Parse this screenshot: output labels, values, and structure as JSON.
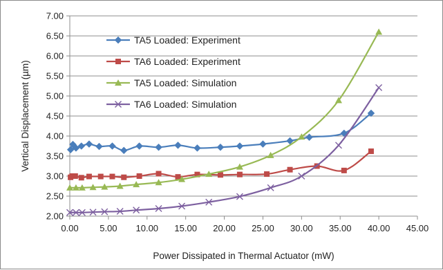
{
  "chart_data": {
    "type": "scatter",
    "title": "",
    "xlabel": "Power Dissipated in Thermal Actuator (mW)",
    "ylabel": "Vertical Displacement (µm)",
    "xlim": [
      0,
      45
    ],
    "ylim": [
      2.0,
      7.0
    ],
    "x_ticks": [
      "0.00",
      "5.00",
      "10.00",
      "15.00",
      "20.00",
      "25.00",
      "30.00",
      "35.00",
      "40.00",
      "45.00"
    ],
    "y_ticks": [
      "2.00",
      "2.50",
      "3.00",
      "3.50",
      "4.00",
      "4.50",
      "5.00",
      "5.50",
      "6.00",
      "6.50",
      "7.00"
    ],
    "grid": true,
    "legend_position": "top-left inside",
    "series": [
      {
        "name": "TA5 Loaded: Experiment",
        "color": "#4a7ebb",
        "marker": "diamond",
        "x": [
          0.1,
          0.4,
          0.8,
          1.5,
          2.5,
          3.8,
          5.5,
          7.0,
          9.0,
          11.5,
          14.0,
          16.5,
          19.5,
          22.0,
          25.0,
          28.5,
          31.0,
          35.5,
          39.0
        ],
        "y": [
          3.66,
          3.79,
          3.7,
          3.75,
          3.8,
          3.74,
          3.75,
          3.64,
          3.75,
          3.72,
          3.77,
          3.7,
          3.72,
          3.75,
          3.8,
          3.88,
          3.97,
          4.07,
          4.57
        ]
      },
      {
        "name": "TA6 Loaded: Experiment",
        "color": "#be4b48",
        "marker": "square",
        "x": [
          0.1,
          0.3,
          0.7,
          1.5,
          2.5,
          4.0,
          5.5,
          7.0,
          9.0,
          11.5,
          14.0,
          16.5,
          19.5,
          22.0,
          25.5,
          28.5,
          32.0,
          35.5,
          39.0
        ],
        "y": [
          2.97,
          3.0,
          3.0,
          2.96,
          2.99,
          2.99,
          2.99,
          2.97,
          3.0,
          3.06,
          2.98,
          3.04,
          3.03,
          3.04,
          3.05,
          3.16,
          3.25,
          3.14,
          3.62
        ]
      },
      {
        "name": "TA5 Loaded: Simulation",
        "color": "#98b954",
        "marker": "triangle",
        "x": [
          0,
          0.8,
          1.6,
          3,
          4.5,
          6.5,
          8.6,
          11.5,
          14.5,
          18,
          22,
          26,
          30,
          34.8,
          40
        ],
        "y": [
          2.71,
          2.71,
          2.71,
          2.72,
          2.73,
          2.75,
          2.79,
          2.84,
          2.92,
          3.05,
          3.23,
          3.52,
          3.98,
          4.89,
          6.6
        ]
      },
      {
        "name": "TA6 Loaded: Simulation",
        "color": "#7d60a0",
        "marker": "x",
        "x": [
          0,
          0.8,
          1.6,
          3,
          4.5,
          6.5,
          8.6,
          11.5,
          14.5,
          18,
          22,
          26,
          30,
          34.8,
          40
        ],
        "y": [
          2.09,
          2.09,
          2.09,
          2.1,
          2.11,
          2.12,
          2.15,
          2.19,
          2.25,
          2.35,
          2.49,
          2.71,
          3.0,
          3.77,
          5.21
        ]
      }
    ]
  }
}
